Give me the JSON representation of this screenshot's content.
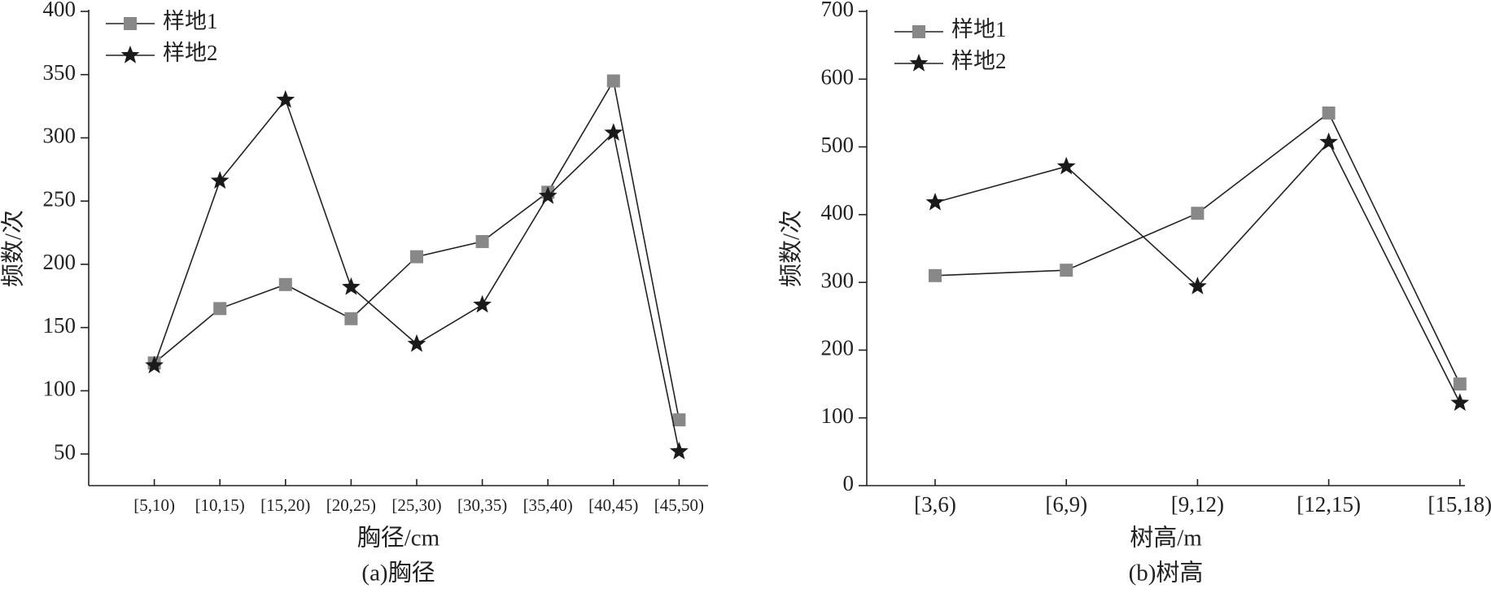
{
  "chart_data": [
    {
      "type": "line",
      "x_label": "胸径/cm",
      "y_label": "频数/次",
      "caption": "(a)胸径",
      "categories": [
        "[5,10)",
        "[10,15)",
        "[15,20)",
        "[20,25)",
        "[25,30)",
        "[30,35)",
        "[35,40)",
        "[40,45)",
        "[45,50)"
      ],
      "series": [
        {
          "name": "样地1",
          "color": "#888888",
          "marker": "square",
          "values": [
            122,
            165,
            184,
            157,
            206,
            218,
            257,
            345,
            77
          ]
        },
        {
          "name": "样地2",
          "color": "#1a1a1a",
          "marker": "star",
          "values": [
            120,
            266,
            330,
            182,
            137,
            168,
            254,
            304,
            52
          ]
        }
      ],
      "ylim": [
        25,
        400
      ],
      "yticks": [
        50,
        100,
        150,
        200,
        250,
        300,
        350,
        400
      ],
      "legend": "upper left"
    },
    {
      "type": "line",
      "x_label": "树高/m",
      "y_label": "频数/次",
      "caption": "(b)树高",
      "categories": [
        "[3,6)",
        "[6,9)",
        "[9,12)",
        "[12,15)",
        "[15,18)"
      ],
      "series": [
        {
          "name": "样地1",
          "color": "#888888",
          "marker": "square",
          "values": [
            310,
            318,
            402,
            550,
            150
          ]
        },
        {
          "name": "样地2",
          "color": "#1a1a1a",
          "marker": "star",
          "values": [
            418,
            471,
            294,
            507,
            122
          ]
        }
      ],
      "ylim": [
        0,
        700
      ],
      "yticks": [
        0,
        100,
        200,
        300,
        400,
        500,
        600,
        700
      ],
      "legend": "upper left"
    }
  ]
}
